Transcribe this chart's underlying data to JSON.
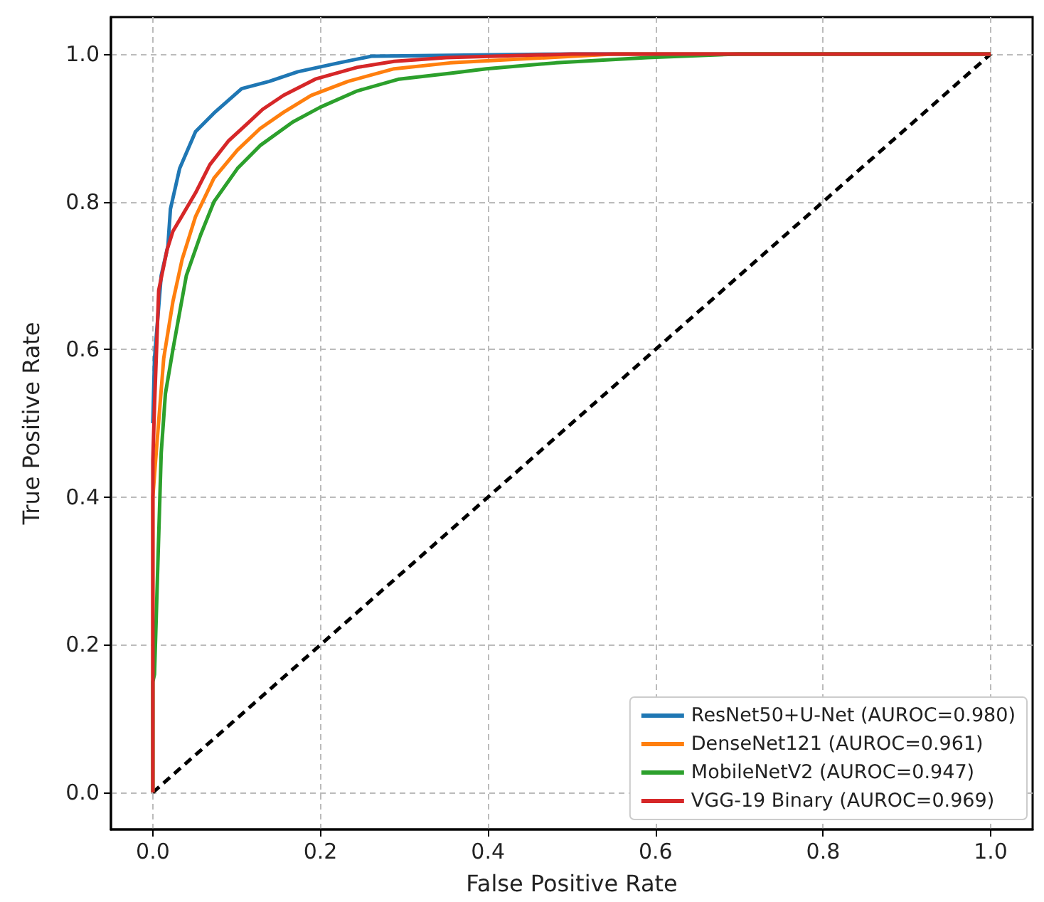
{
  "chart_data": {
    "type": "line",
    "xlabel": "False Positive Rate",
    "ylabel": "True Positive Rate",
    "xlim": [
      -0.05,
      1.05
    ],
    "ylim": [
      -0.05,
      1.05
    ],
    "xticks": [
      {
        "value": 0,
        "label": "0.0"
      },
      {
        "value": 0.2,
        "label": "0.2"
      },
      {
        "value": 0.4,
        "label": "0.4"
      },
      {
        "value": 0.6,
        "label": "0.6"
      },
      {
        "value": 0.8,
        "label": "0.8"
      },
      {
        "value": 1,
        "label": "1.0"
      }
    ],
    "yticks": [
      {
        "value": 0,
        "label": "0.0"
      },
      {
        "value": 0.2,
        "label": "0.2"
      },
      {
        "value": 0.4,
        "label": "0.4"
      },
      {
        "value": 0.6,
        "label": "0.6"
      },
      {
        "value": 0.8,
        "label": "0.8"
      },
      {
        "value": 1,
        "label": "1.0"
      }
    ],
    "grid": true,
    "legend": "bottom right",
    "marker": "none",
    "series": [
      {
        "name": "ResNet50+U-Net (AUROC=0.980)",
        "color": "#1f77b4",
        "line_style": "solid",
        "x": [
          0,
          0.002,
          0.01,
          0.018,
          0.021,
          0.032,
          0.051,
          0.073,
          0.106,
          0.139,
          0.173,
          0.222,
          0.261,
          0.5,
          1
        ],
        "values": [
          0.5,
          0.588,
          0.7,
          0.74,
          0.79,
          0.845,
          0.895,
          0.92,
          0.953,
          0.963,
          0.976,
          0.988,
          0.997,
          1,
          1
        ]
      },
      {
        "name": "DenseNet121 (AUROC=0.961)",
        "color": "#ff7f0e",
        "line_style": "solid",
        "x": [
          0,
          0,
          0.004,
          0.013,
          0.024,
          0.035,
          0.051,
          0.073,
          0.101,
          0.128,
          0.156,
          0.189,
          0.233,
          0.288,
          0.355,
          0.55,
          1
        ],
        "values": [
          0,
          0.4,
          0.46,
          0.588,
          0.665,
          0.722,
          0.78,
          0.832,
          0.87,
          0.899,
          0.921,
          0.944,
          0.963,
          0.98,
          0.988,
          1,
          1
        ]
      },
      {
        "name": "MobileNetV2 (AUROC=0.947)",
        "color": "#2ca02c",
        "line_style": "solid",
        "x": [
          0,
          0,
          0.002,
          0.01,
          0.015,
          0.024,
          0.04,
          0.057,
          0.073,
          0.101,
          0.128,
          0.167,
          0.2,
          0.244,
          0.294,
          0.355,
          0.398,
          0.481,
          0.59,
          0.7,
          1
        ],
        "values": [
          0,
          0.15,
          0.16,
          0.46,
          0.54,
          0.6,
          0.7,
          0.755,
          0.8,
          0.845,
          0.876,
          0.908,
          0.928,
          0.95,
          0.966,
          0.974,
          0.98,
          0.988,
          0.995,
          1,
          1
        ]
      },
      {
        "name": "VGG-19 Binary (AUROC=0.969)",
        "color": "#d62728",
        "line_style": "solid",
        "x": [
          0,
          0,
          0.002,
          0.007,
          0.017,
          0.024,
          0.051,
          0.068,
          0.09,
          0.112,
          0.131,
          0.156,
          0.194,
          0.244,
          0.288,
          0.35,
          0.5,
          1
        ],
        "values": [
          0,
          0.45,
          0.524,
          0.68,
          0.735,
          0.76,
          0.812,
          0.85,
          0.882,
          0.905,
          0.925,
          0.944,
          0.966,
          0.982,
          0.99,
          0.995,
          1,
          1
        ]
      },
      {
        "color": "#000000",
        "line_style": "dashed",
        "x": [
          0,
          1
        ],
        "values": [
          0,
          1
        ]
      }
    ]
  }
}
